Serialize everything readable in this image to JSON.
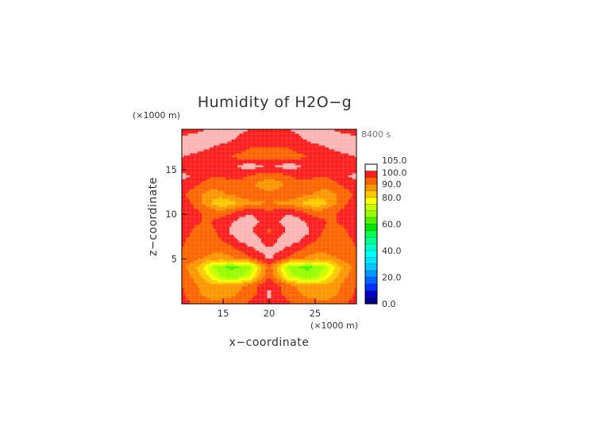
{
  "chart_data": {
    "type": "heatmap",
    "title": "Humidity of H2O−g",
    "xlabel": "x−coordinate",
    "ylabel": "z−coordinate",
    "x_unit": "(×1000 m)",
    "y_unit": "(×1000 m)",
    "time_label": "8400 s",
    "xlim": [
      10.5,
      29.5
    ],
    "ylim": [
      0,
      19.5
    ],
    "x_ticks": [
      15,
      20,
      25
    ],
    "y_ticks": [
      5,
      10,
      15
    ],
    "x_tick_labels": [
      "15",
      "20",
      "25"
    ],
    "y_tick_labels": [
      "5",
      "10",
      "15"
    ],
    "colorbar": {
      "min": 0,
      "max": 105,
      "labels": [
        "105.0",
        "100.0",
        "90.0",
        "80.0",
        "60.0",
        "40.0",
        "20.0",
        "0.0"
      ],
      "label_values": [
        105,
        100,
        90,
        80,
        60,
        40,
        20,
        0
      ],
      "levels": [
        {
          "from": 0,
          "to": 5,
          "color": "#00008c"
        },
        {
          "from": 5,
          "to": 10,
          "color": "#0000c8"
        },
        {
          "from": 10,
          "to": 15,
          "color": "#0032ff"
        },
        {
          "from": 15,
          "to": 20,
          "color": "#0064ff"
        },
        {
          "from": 20,
          "to": 25,
          "color": "#0096ff"
        },
        {
          "from": 25,
          "to": 30,
          "color": "#00c8ff"
        },
        {
          "from": 30,
          "to": 35,
          "color": "#00e6ff"
        },
        {
          "from": 35,
          "to": 40,
          "color": "#00ffff"
        },
        {
          "from": 40,
          "to": 45,
          "color": "#00ffc8"
        },
        {
          "from": 45,
          "to": 50,
          "color": "#00ff96"
        },
        {
          "from": 50,
          "to": 55,
          "color": "#00ff50"
        },
        {
          "from": 55,
          "to": 60,
          "color": "#00e600"
        },
        {
          "from": 60,
          "to": 65,
          "color": "#50f000"
        },
        {
          "from": 65,
          "to": 70,
          "color": "#96ff00"
        },
        {
          "from": 70,
          "to": 75,
          "color": "#c8ff00"
        },
        {
          "from": 75,
          "to": 80,
          "color": "#ffff00"
        },
        {
          "from": 80,
          "to": 85,
          "color": "#ffc800"
        },
        {
          "from": 85,
          "to": 90,
          "color": "#ff9600"
        },
        {
          "from": 90,
          "to": 95,
          "color": "#ff6400"
        },
        {
          "from": 95,
          "to": 100,
          "color": "#ff1e1e"
        },
        {
          "from": 100,
          "to": 105,
          "color": "#ffb4b4"
        }
      ]
    },
    "field": {
      "description_cols": 19,
      "description_rows": 20,
      "x_range": [
        10.5,
        29.5
      ],
      "z_range": [
        0,
        19.5
      ],
      "values": [
        [
          97,
          95,
          93,
          92,
          92,
          93,
          94,
          96,
          98,
          99,
          98,
          96,
          94,
          93,
          92,
          92,
          93,
          95,
          97
        ],
        [
          96,
          93,
          90,
          88,
          88,
          89,
          91,
          93,
          96,
          101,
          96,
          93,
          91,
          89,
          88,
          88,
          90,
          93,
          96
        ],
        [
          95,
          92,
          89,
          87,
          86,
          87,
          89,
          92,
          96,
          100,
          96,
          92,
          89,
          87,
          86,
          87,
          89,
          92,
          95
        ],
        [
          93,
          90,
          85,
          78,
          70,
          67,
          69,
          74,
          86,
          94,
          86,
          74,
          69,
          67,
          70,
          78,
          85,
          90,
          93
        ],
        [
          92,
          88,
          82,
          72,
          66,
          64,
          65,
          68,
          82,
          93,
          82,
          68,
          65,
          64,
          66,
          72,
          82,
          88,
          92
        ],
        [
          94,
          92,
          90,
          89,
          88,
          89,
          91,
          94,
          98,
          101,
          98,
          94,
          91,
          89,
          88,
          89,
          90,
          92,
          94
        ],
        [
          95,
          93,
          92,
          91,
          91,
          93,
          96,
          99,
          101,
          101,
          101,
          99,
          96,
          93,
          91,
          91,
          92,
          93,
          95
        ],
        [
          96,
          94,
          93,
          93,
          95,
          98,
          101,
          103,
          101,
          96,
          101,
          103,
          101,
          98,
          95,
          93,
          93,
          94,
          96
        ],
        [
          97,
          95,
          94,
          94,
          96,
          101,
          103,
          101,
          97,
          94,
          97,
          101,
          103,
          101,
          96,
          94,
          94,
          95,
          97
        ],
        [
          98,
          96,
          95,
          95,
          97,
          99,
          102,
          103,
          100,
          97,
          100,
          103,
          102,
          99,
          97,
          95,
          95,
          96,
          98
        ],
        [
          99,
          97,
          95,
          93,
          92,
          94,
          97,
          99,
          98,
          96,
          98,
          99,
          97,
          94,
          92,
          93,
          95,
          97,
          99
        ],
        [
          98,
          95,
          90,
          85,
          80,
          82,
          86,
          88,
          89,
          90,
          89,
          88,
          86,
          82,
          80,
          85,
          90,
          95,
          98
        ],
        [
          96,
          93,
          90,
          88,
          89,
          91,
          93,
          94,
          93,
          92,
          93,
          94,
          93,
          91,
          89,
          88,
          90,
          93,
          96
        ],
        [
          99,
          97,
          94,
          92,
          92,
          93,
          94,
          92,
          88,
          86,
          88,
          92,
          94,
          93,
          92,
          92,
          94,
          97,
          99
        ],
        [
          101,
          100,
          98,
          96,
          96,
          96,
          96,
          95,
          93,
          93,
          93,
          95,
          96,
          96,
          96,
          96,
          98,
          100,
          101
        ],
        [
          98,
          96,
          95,
          95,
          96,
          98,
          101,
          103,
          101,
          99,
          101,
          103,
          101,
          98,
          96,
          95,
          95,
          96,
          98
        ],
        [
          100,
          99,
          98,
          97,
          96,
          95,
          94,
          93,
          93,
          93,
          93,
          93,
          94,
          95,
          96,
          97,
          98,
          99,
          100
        ],
        [
          103,
          102,
          101,
          100,
          98,
          97,
          96,
          95,
          95,
          95,
          95,
          95,
          96,
          97,
          98,
          100,
          101,
          102,
          103
        ],
        [
          101,
          102,
          103,
          104,
          103,
          101,
          99,
          98,
          98,
          98,
          98,
          98,
          99,
          101,
          103,
          104,
          103,
          102,
          101
        ],
        [
          98,
          98,
          99,
          101,
          103,
          103,
          101,
          100,
          99,
          99,
          99,
          100,
          101,
          103,
          103,
          101,
          99,
          98,
          98
        ]
      ]
    }
  }
}
